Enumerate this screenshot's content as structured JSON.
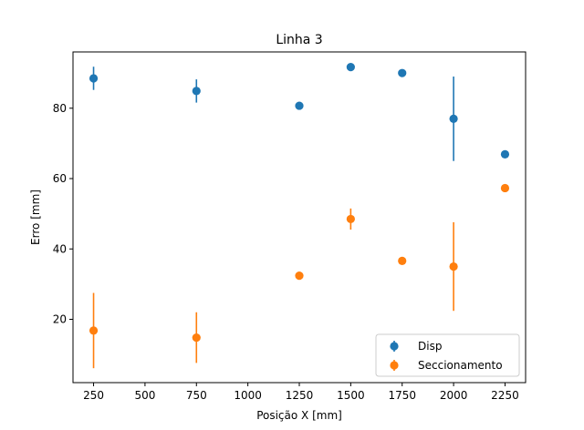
{
  "chart_data": {
    "type": "scatter",
    "title": "Linha 3",
    "xlabel": "Posição X [mm]",
    "ylabel": "Erro [mm]",
    "xlim": [
      150,
      2350
    ],
    "ylim": [
      2,
      96
    ],
    "xticks": [
      250,
      500,
      750,
      1000,
      1250,
      1500,
      1750,
      2000,
      2250
    ],
    "yticks": [
      20,
      40,
      60,
      80
    ],
    "legend_position": "lower-right",
    "series": [
      {
        "name": "Disp",
        "color": "#1f77b4",
        "points": [
          {
            "x": 250,
            "y": 88.5,
            "err": 3.3
          },
          {
            "x": 750,
            "y": 84.9,
            "err": 3.3
          },
          {
            "x": 1250,
            "y": 80.7,
            "err": 0
          },
          {
            "x": 1500,
            "y": 91.7,
            "err": 0
          },
          {
            "x": 1750,
            "y": 90.0,
            "err": 0
          },
          {
            "x": 2000,
            "y": 77.0,
            "err": 12.0
          },
          {
            "x": 2250,
            "y": 66.9,
            "err": 0
          }
        ]
      },
      {
        "name": "Seccionamento",
        "color": "#ff7f0e",
        "points": [
          {
            "x": 250,
            "y": 16.8,
            "err": 10.7
          },
          {
            "x": 750,
            "y": 14.8,
            "err": 7.2
          },
          {
            "x": 1250,
            "y": 32.4,
            "err": 0
          },
          {
            "x": 1500,
            "y": 48.5,
            "err": 3.0
          },
          {
            "x": 1750,
            "y": 36.6,
            "err": 1.0
          },
          {
            "x": 2000,
            "y": 35.0,
            "err": 12.6
          },
          {
            "x": 2250,
            "y": 57.3,
            "err": 0.5
          }
        ]
      }
    ]
  }
}
